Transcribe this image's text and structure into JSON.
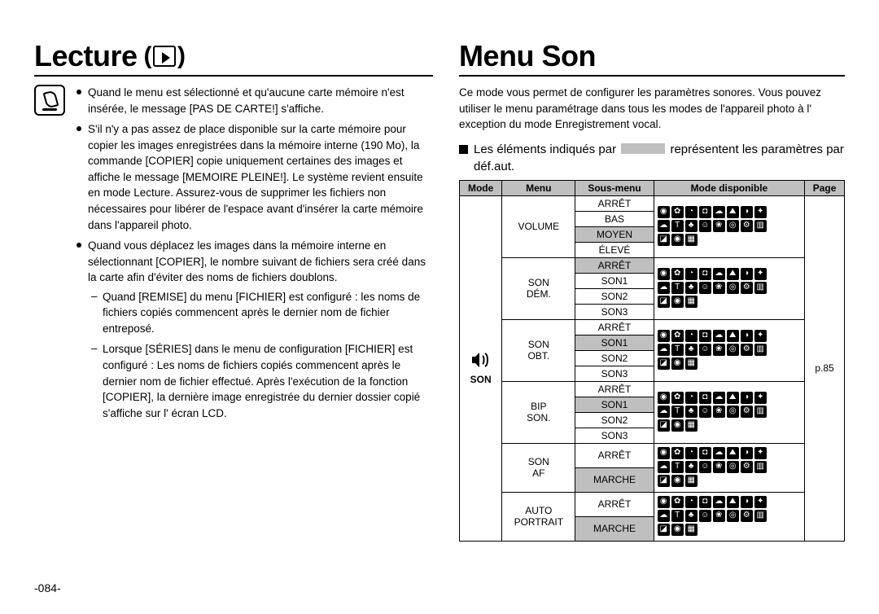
{
  "page_number": "-084-",
  "left": {
    "title": "Lecture",
    "bullets": [
      "Quand le menu est sélectionné et qu'aucune carte mémoire n'est insérée, le message [PAS DE CARTE!] s'affiche.",
      "S'il n'y a pas assez de place disponible sur la carte mémoire pour copier les images enregistrées dans la mémoire interne (190 Mo), la commande [COPIER] copie uniquement certaines des images et affiche le message [MEMOIRE PLEINE!]. Le système revient ensuite en mode Lecture. Assurez-vous de supprimer les fichiers non nécessaires pour libérer de l'espace avant d'insérer la carte mémoire dans l'appareil photo.",
      "Quand vous déplacez les images dans la mémoire interne en sélectionnant [COPIER], le nombre suivant de fichiers sera créé dans la carte afin d'éviter des noms de fichiers doublons."
    ],
    "dashes": [
      "Quand [REMISE] du menu [FICHIER] est configuré : les noms de fichiers copiés commencent après le dernier nom de fichier entreposé.",
      "Lorsque [SÉRIES] dans le menu de configuration [FICHIER] est configuré : Les noms de fichiers copiés commencent après le dernier nom de fichier effectué. Après l'exécution de la fonction [COPIER], la dernière image enregistrée du dernier dossier copié s'affiche sur l' écran LCD."
    ]
  },
  "right": {
    "title": "Menu Son",
    "intro": "Ce mode vous permet de configurer les paramètres sonores. Vous pouvez utiliser le menu paramétrage dans tous les modes de l'appareil photo à l' exception du mode Enregistrement vocal.",
    "lead_a": "Les éléments indiqués par",
    "lead_b": "représentent les paramètres par déf.aut.",
    "headers": [
      "Mode",
      "Menu",
      "Sous-menu",
      "Mode disponible",
      "Page"
    ],
    "mode_label": "SON",
    "page_ref": "p.85",
    "groups": [
      {
        "menu": "VOLUME",
        "subs": [
          {
            "t": "ARRÊT",
            "d": false
          },
          {
            "t": "BAS",
            "d": false
          },
          {
            "t": "MOYEN",
            "d": true
          },
          {
            "t": "ÉLEVÉ",
            "d": false
          }
        ]
      },
      {
        "menu": "SON DÉM.",
        "subs": [
          {
            "t": "ARRÊT",
            "d": true
          },
          {
            "t": "SON1",
            "d": false
          },
          {
            "t": "SON2",
            "d": false
          },
          {
            "t": "SON3",
            "d": false
          }
        ]
      },
      {
        "menu": "SON OBT.",
        "subs": [
          {
            "t": "ARRÊT",
            "d": false
          },
          {
            "t": "SON1",
            "d": true
          },
          {
            "t": "SON2",
            "d": false
          },
          {
            "t": "SON3",
            "d": false
          }
        ]
      },
      {
        "menu": "BIP SON.",
        "subs": [
          {
            "t": "ARRÊT",
            "d": false
          },
          {
            "t": "SON1",
            "d": true
          },
          {
            "t": "SON2",
            "d": false
          },
          {
            "t": "SON3",
            "d": false
          }
        ]
      },
      {
        "menu": "SON AF",
        "subs": [
          {
            "t": "ARRÊT",
            "d": false
          },
          {
            "t": "MARCHE",
            "d": true
          }
        ]
      },
      {
        "menu": "AUTO PORTRAIT",
        "subs": [
          {
            "t": "ARRÊT",
            "d": false
          },
          {
            "t": "MARCHE",
            "d": true
          }
        ]
      }
    ],
    "mode_icons_rows": [
      [
        "◉",
        "✿",
        "◔",
        "◘",
        "☁",
        "⛰",
        "◑",
        "✦"
      ],
      [
        "☁",
        "T",
        "♣",
        "☺",
        "❀",
        "◎",
        "⚙",
        "▥"
      ],
      [
        "◪",
        "◉",
        "▦"
      ]
    ]
  }
}
